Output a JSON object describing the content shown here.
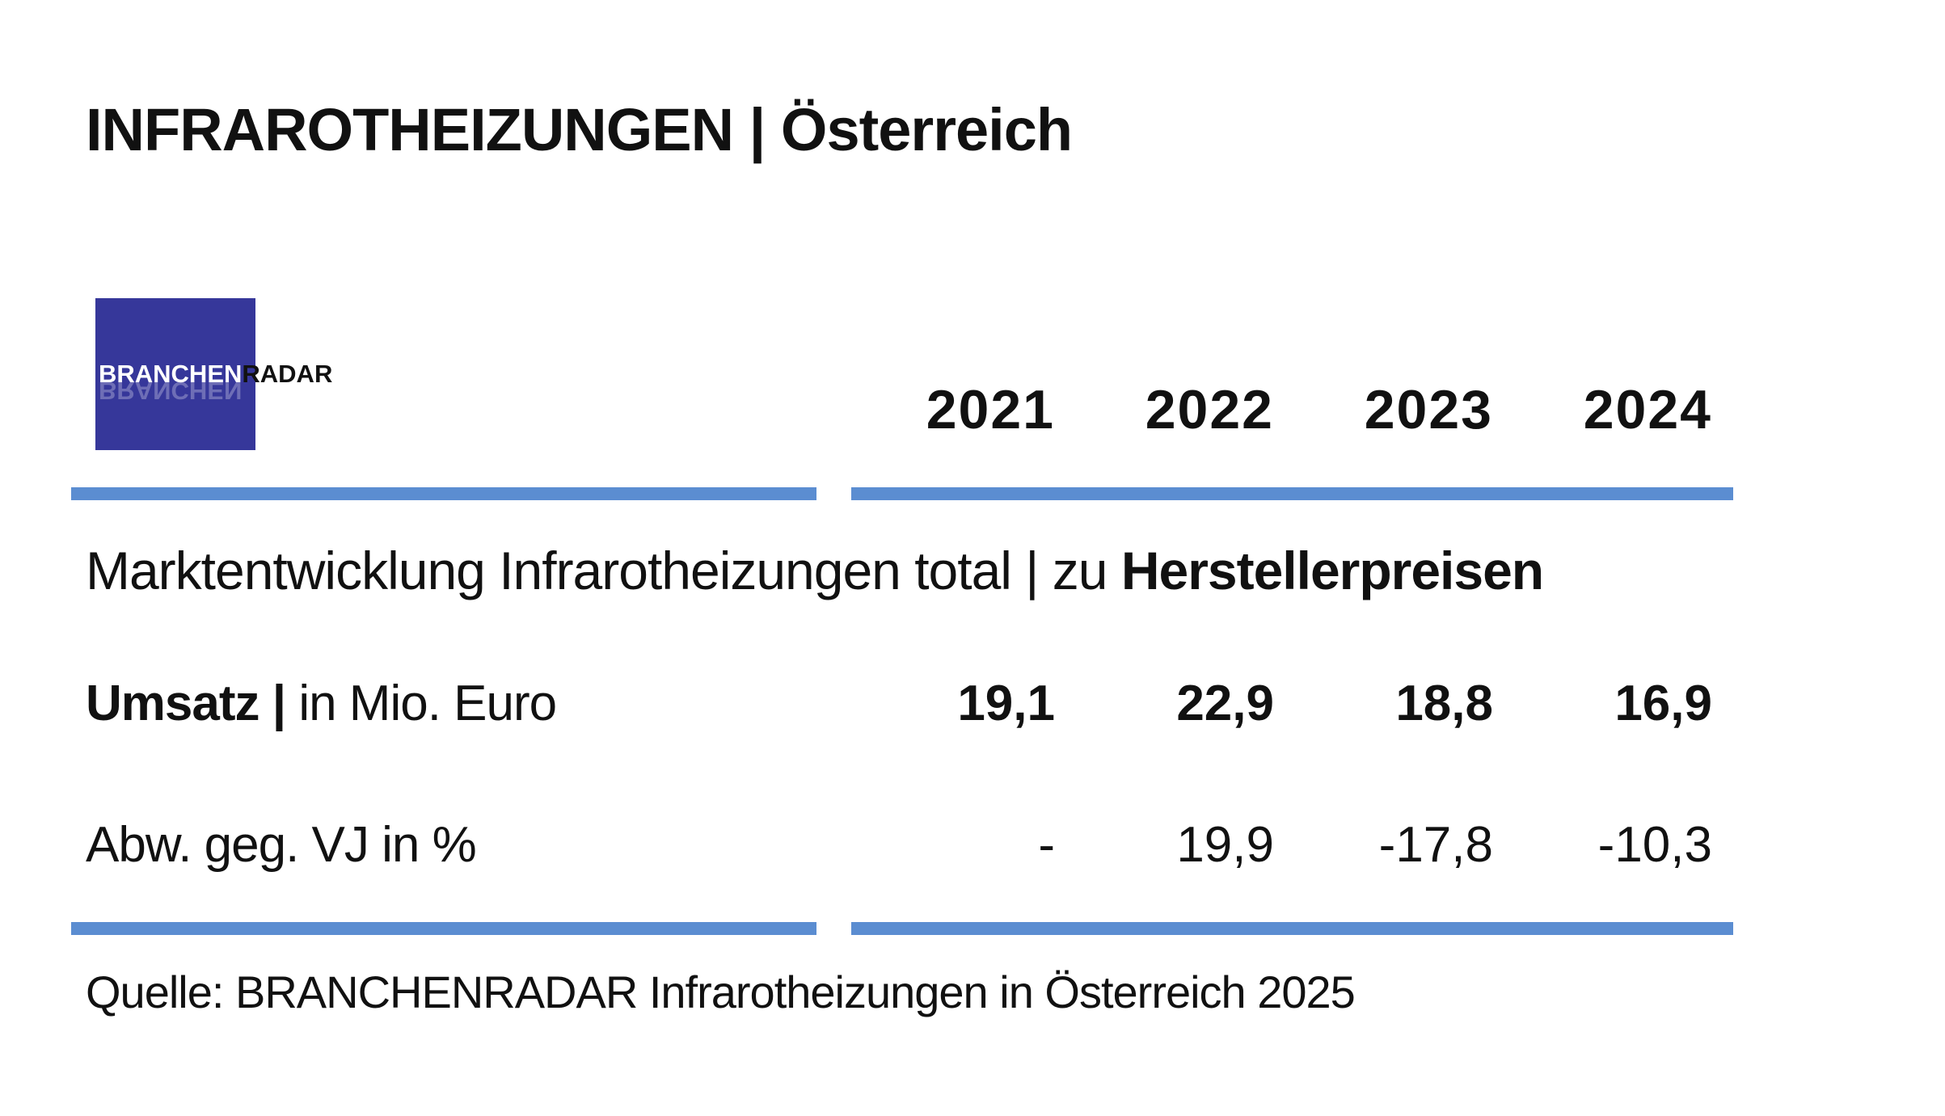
{
  "title": "INFRAROTHEIZUNGEN | Österreich",
  "logo": {
    "word1": "BRANCHEN",
    "word2": "RADAR",
    "bg_color": "#36379a"
  },
  "years": [
    "2021",
    "2022",
    "2023",
    "2024"
  ],
  "subtitle": {
    "prefix": "Marktentwicklung Infrarotheizungen total | zu ",
    "bold": "Herstellerpreisen"
  },
  "rows": [
    {
      "label_bold": "Umsatz |",
      "label_rest": " in Mio. Euro",
      "values": [
        "19,1",
        "22,9",
        "18,8",
        "16,9"
      ]
    },
    {
      "label": "Abw. geg. VJ in %",
      "values": [
        "-",
        "19,9",
        "-17,8",
        "-10,3"
      ]
    }
  ],
  "source": "Quelle: BRANCHENRADAR Infrarotheizungen in Österreich 2025",
  "accent_color": "#5b8dd1"
}
